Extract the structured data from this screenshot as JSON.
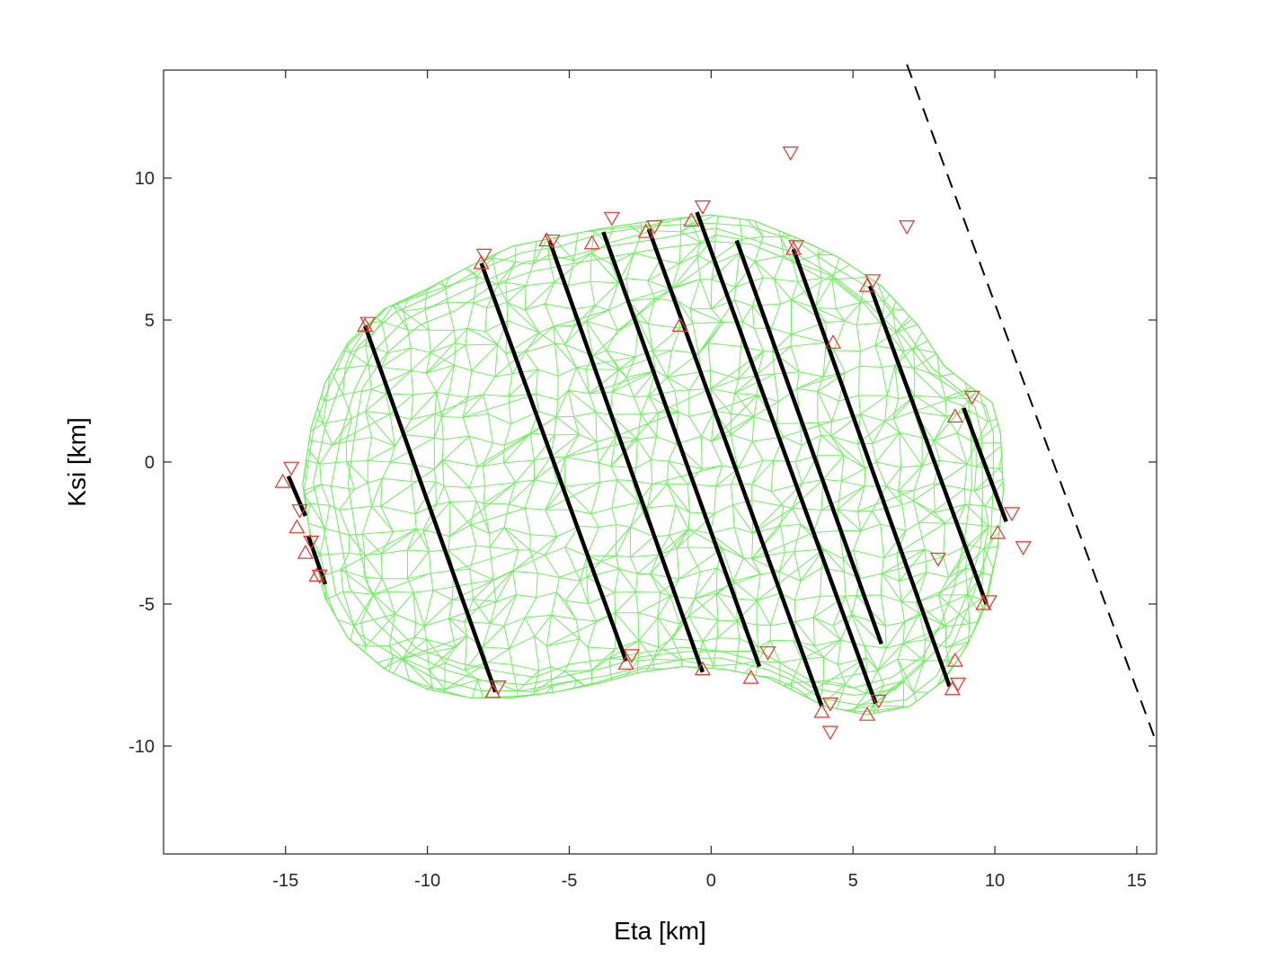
{
  "chart_data": {
    "type": "scatter",
    "xlabel": "Eta [km]",
    "ylabel": "Ksi [km]",
    "xlim": [
      -19.3,
      15.7
    ],
    "ylim": [
      -13.8,
      13.8
    ],
    "x_ticks": [
      -15,
      -10,
      -5,
      0,
      5,
      10,
      15
    ],
    "y_ticks": [
      -10,
      -5,
      0,
      5,
      10
    ],
    "grid": false,
    "legend": "none",
    "colors": {
      "mesh": "#66ee55",
      "chords": "#000000",
      "markers": "#e8332c",
      "limb": "#000000"
    },
    "mesh_outline": [
      [
        -12.8,
        4.2
      ],
      [
        -11.5,
        5.4
      ],
      [
        -10.0,
        6.1
      ],
      [
        -8.5,
        6.9
      ],
      [
        -7.0,
        7.6
      ],
      [
        -5.5,
        7.9
      ],
      [
        -4.0,
        8.2
      ],
      [
        -2.0,
        8.5
      ],
      [
        0.0,
        8.7
      ],
      [
        1.5,
        8.5
      ],
      [
        3.0,
        7.9
      ],
      [
        4.5,
        7.2
      ],
      [
        6.0,
        6.2
      ],
      [
        7.3,
        4.8
      ],
      [
        8.2,
        3.4
      ],
      [
        9.2,
        2.6
      ],
      [
        9.9,
        2.1
      ],
      [
        10.2,
        1.0
      ],
      [
        10.3,
        -1.0
      ],
      [
        10.1,
        -3.0
      ],
      [
        9.7,
        -5.0
      ],
      [
        9.0,
        -6.5
      ],
      [
        8.2,
        -7.7
      ],
      [
        7.0,
        -8.6
      ],
      [
        5.5,
        -8.9
      ],
      [
        4.0,
        -8.6
      ],
      [
        3.0,
        -8.1
      ],
      [
        2.0,
        -7.6
      ],
      [
        0.5,
        -7.3
      ],
      [
        -1.0,
        -7.2
      ],
      [
        -2.5,
        -7.4
      ],
      [
        -4.0,
        -7.8
      ],
      [
        -5.5,
        -8.1
      ],
      [
        -7.0,
        -8.3
      ],
      [
        -8.5,
        -8.3
      ],
      [
        -10.0,
        -8.0
      ],
      [
        -11.5,
        -7.3
      ],
      [
        -12.8,
        -6.2
      ],
      [
        -13.6,
        -4.8
      ],
      [
        -14.1,
        -2.8
      ],
      [
        -14.4,
        -0.8
      ],
      [
        -14.1,
        1.2
      ],
      [
        -13.6,
        2.8
      ]
    ],
    "chords": [
      [
        [
          -14.9,
          -0.5
        ],
        [
          -14.3,
          -1.9
        ]
      ],
      [
        [
          -14.2,
          -2.6
        ],
        [
          -13.6,
          -4.3
        ]
      ],
      [
        [
          -12.2,
          4.8
        ],
        [
          -7.6,
          -8.1
        ]
      ],
      [
        [
          -8.1,
          7.0
        ],
        [
          -3.0,
          -7.0
        ]
      ],
      [
        [
          -5.7,
          7.8
        ],
        [
          -0.3,
          -7.4
        ]
      ],
      [
        [
          -3.8,
          8.1
        ],
        [
          1.7,
          -7.2
        ]
      ],
      [
        [
          -2.2,
          8.2
        ],
        [
          3.9,
          -8.6
        ]
      ],
      [
        [
          -0.5,
          8.8
        ],
        [
          5.8,
          -8.5
        ]
      ],
      [
        [
          0.9,
          7.8
        ],
        [
          6.0,
          -6.4
        ]
      ],
      [
        [
          2.9,
          7.5
        ],
        [
          8.4,
          -7.9
        ]
      ],
      [
        [
          5.6,
          6.2
        ],
        [
          9.7,
          -5.0
        ]
      ],
      [
        [
          8.9,
          1.9
        ],
        [
          10.4,
          -2.1
        ]
      ]
    ],
    "limb_line": [
      [
        6.9,
        14.0
      ],
      [
        15.7,
        -9.9
      ]
    ],
    "markers_up": [
      [
        -15.1,
        -0.7
      ],
      [
        -14.6,
        -2.3
      ],
      [
        -14.3,
        -3.2
      ],
      [
        -13.9,
        -4.0
      ],
      [
        -12.2,
        4.8
      ],
      [
        -8.1,
        7.0
      ],
      [
        -7.7,
        -8.1
      ],
      [
        -5.8,
        7.8
      ],
      [
        -4.2,
        7.7
      ],
      [
        -3.0,
        -7.1
      ],
      [
        -2.3,
        8.1
      ],
      [
        -0.7,
        8.5
      ],
      [
        -1.1,
        4.8
      ],
      [
        -0.3,
        -7.3
      ],
      [
        1.4,
        -7.6
      ],
      [
        2.9,
        7.5
      ],
      [
        3.9,
        -8.8
      ],
      [
        4.3,
        4.2
      ],
      [
        5.5,
        -8.9
      ],
      [
        5.5,
        6.2
      ],
      [
        8.5,
        -8.0
      ],
      [
        8.6,
        -7.0
      ],
      [
        8.6,
        1.6
      ],
      [
        9.6,
        -5.0
      ],
      [
        10.1,
        -2.5
      ]
    ],
    "markers_down": [
      [
        -14.8,
        -0.2
      ],
      [
        -14.5,
        -1.7
      ],
      [
        -14.1,
        -2.8
      ],
      [
        -13.8,
        -4.0
      ],
      [
        -12.1,
        4.9
      ],
      [
        -8.0,
        7.3
      ],
      [
        -7.5,
        -7.9
      ],
      [
        -5.6,
        7.8
      ],
      [
        -3.5,
        8.6
      ],
      [
        -2.8,
        -6.8
      ],
      [
        -2.0,
        8.3
      ],
      [
        -0.3,
        9.0
      ],
      [
        2.0,
        -6.7
      ],
      [
        2.8,
        10.9
      ],
      [
        3.0,
        7.6
      ],
      [
        4.2,
        -8.5
      ],
      [
        4.2,
        -9.5
      ],
      [
        5.7,
        6.4
      ],
      [
        5.9,
        -8.4
      ],
      [
        6.9,
        8.3
      ],
      [
        8.0,
        -3.4
      ],
      [
        8.7,
        -7.8
      ],
      [
        9.2,
        2.3
      ],
      [
        9.8,
        -4.9
      ],
      [
        10.6,
        -1.8
      ],
      [
        11.0,
        -3.0
      ]
    ]
  }
}
